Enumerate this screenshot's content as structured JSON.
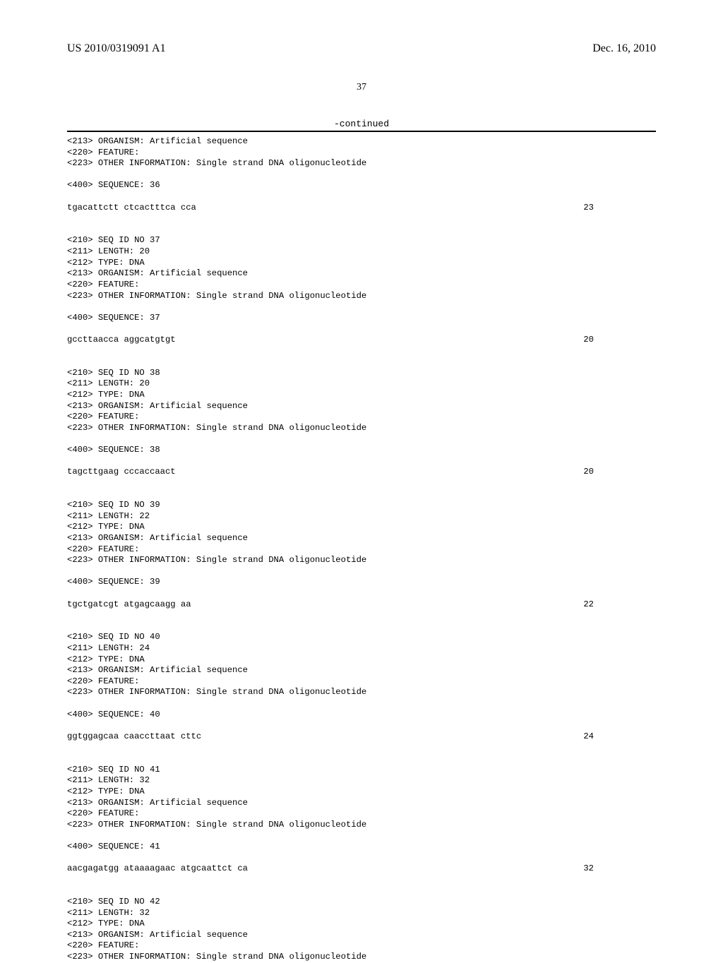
{
  "header": {
    "publication": "US 2010/0319091 A1",
    "date": "Dec. 16, 2010"
  },
  "page_number": "37",
  "continued_label": "-continued",
  "entries": [
    {
      "annot_top": [
        "<213> ORGANISM: Artificial sequence",
        "<220> FEATURE:",
        "<223> OTHER INFORMATION: Single strand DNA oligonucleotide"
      ],
      "seq_header": "<400> SEQUENCE: 36",
      "sequence": "tgacattctt ctcactttca cca",
      "length": "23"
    },
    {
      "annot_top": [
        "<210> SEQ ID NO 37",
        "<211> LENGTH: 20",
        "<212> TYPE: DNA",
        "<213> ORGANISM: Artificial sequence",
        "<220> FEATURE:",
        "<223> OTHER INFORMATION: Single strand DNA oligonucleotide"
      ],
      "seq_header": "<400> SEQUENCE: 37",
      "sequence": "gccttaacca aggcatgtgt",
      "length": "20"
    },
    {
      "annot_top": [
        "<210> SEQ ID NO 38",
        "<211> LENGTH: 20",
        "<212> TYPE: DNA",
        "<213> ORGANISM: Artificial sequence",
        "<220> FEATURE:",
        "<223> OTHER INFORMATION: Single strand DNA oligonucleotide"
      ],
      "seq_header": "<400> SEQUENCE: 38",
      "sequence": "tagcttgaag cccaccaact",
      "length": "20"
    },
    {
      "annot_top": [
        "<210> SEQ ID NO 39",
        "<211> LENGTH: 22",
        "<212> TYPE: DNA",
        "<213> ORGANISM: Artificial sequence",
        "<220> FEATURE:",
        "<223> OTHER INFORMATION: Single strand DNA oligonucleotide"
      ],
      "seq_header": "<400> SEQUENCE: 39",
      "sequence": "tgctgatcgt atgagcaagg aa",
      "length": "22"
    },
    {
      "annot_top": [
        "<210> SEQ ID NO 40",
        "<211> LENGTH: 24",
        "<212> TYPE: DNA",
        "<213> ORGANISM: Artificial sequence",
        "<220> FEATURE:",
        "<223> OTHER INFORMATION: Single strand DNA oligonucleotide"
      ],
      "seq_header": "<400> SEQUENCE: 40",
      "sequence": "ggtggagcaa caaccttaat cttc",
      "length": "24"
    },
    {
      "annot_top": [
        "<210> SEQ ID NO 41",
        "<211> LENGTH: 32",
        "<212> TYPE: DNA",
        "<213> ORGANISM: Artificial sequence",
        "<220> FEATURE:",
        "<223> OTHER INFORMATION: Single strand DNA oligonucleotide"
      ],
      "seq_header": "<400> SEQUENCE: 41",
      "sequence": "aacgagatgg ataaaagaac atgcaattct ca",
      "length": "32"
    },
    {
      "annot_top": [
        "<210> SEQ ID NO 42",
        "<211> LENGTH: 32",
        "<212> TYPE: DNA",
        "<213> ORGANISM: Artificial sequence",
        "<220> FEATURE:",
        "<223> OTHER INFORMATION: Single strand DNA oligonucleotide"
      ],
      "seq_header": "",
      "sequence": "",
      "length": ""
    }
  ]
}
